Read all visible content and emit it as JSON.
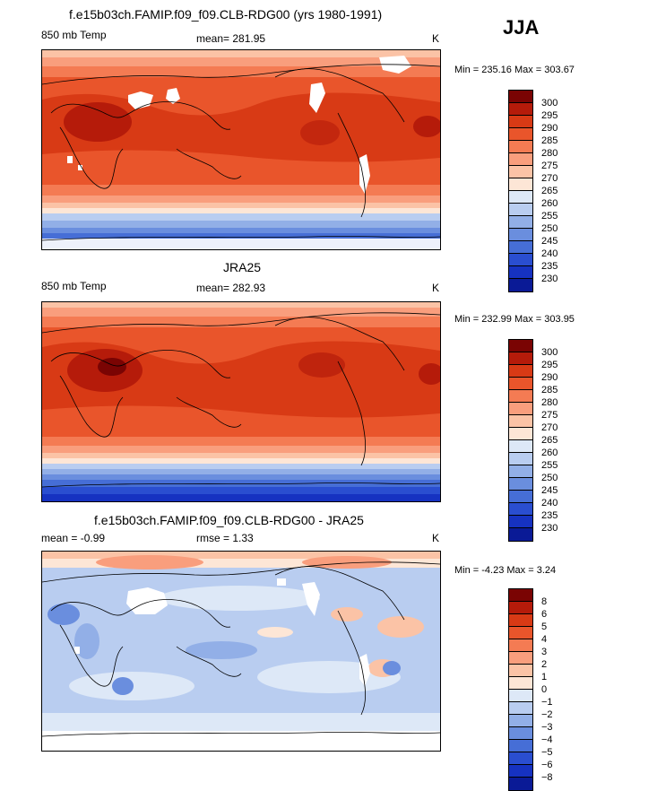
{
  "season": "JJA",
  "panels": [
    {
      "title": "f.e15b03ch.FAMIP.f09_f09.CLB-RDG00 (yrs 1980-1991)",
      "left": "850 mb Temp",
      "center": "mean= 281.95",
      "right": "K",
      "minmax": "Min = 235.16 Max = 303.67",
      "kind": "model"
    },
    {
      "title": "JRA25",
      "left": "850 mb Temp",
      "center": "mean= 282.93",
      "right": "K",
      "minmax": "Min = 232.99 Max = 303.95",
      "kind": "obs"
    },
    {
      "title": "f.e15b03ch.FAMIP.f09_f09.CLB-RDG00 - JRA25",
      "left": "mean =   -0.99",
      "center": "rmse =    1.33",
      "right": "K",
      "minmax": "Min =  -4.23 Max =   3.24",
      "kind": "diff"
    }
  ],
  "colorbars": [
    {
      "labels": [
        "300",
        "295",
        "290",
        "285",
        "280",
        "275",
        "270",
        "265",
        "260",
        "255",
        "250",
        "245",
        "240",
        "235",
        "230"
      ],
      "colors": [
        "#7a0403",
        "#b51b0a",
        "#d83a15",
        "#e9552b",
        "#f47b53",
        "#f99e7d",
        "#fbc3a6",
        "#fde6d6",
        "#dde8f7",
        "#b9cdf0",
        "#92afe7",
        "#6a8ede",
        "#466ed6",
        "#2a4ed0",
        "#1632c1",
        "#0a1a96"
      ]
    },
    {
      "labels": [
        "300",
        "295",
        "290",
        "285",
        "280",
        "275",
        "270",
        "265",
        "260",
        "255",
        "250",
        "245",
        "240",
        "235",
        "230"
      ],
      "colors": [
        "#7a0403",
        "#b51b0a",
        "#d83a15",
        "#e9552b",
        "#f47b53",
        "#f99e7d",
        "#fbc3a6",
        "#fde6d6",
        "#dde8f7",
        "#b9cdf0",
        "#92afe7",
        "#6a8ede",
        "#466ed6",
        "#2a4ed0",
        "#1632c1",
        "#0a1a96"
      ]
    },
    {
      "labels": [
        "8",
        "6",
        "5",
        "4",
        "3",
        "2",
        "1",
        "0",
        "−1",
        "−2",
        "−3",
        "−4",
        "−5",
        "−6",
        "−8"
      ],
      "colors": [
        "#7a0403",
        "#b51b0a",
        "#d83a15",
        "#e9552b",
        "#f47b53",
        "#f99e7d",
        "#fbc3a6",
        "#fde6d6",
        "#dde8f7",
        "#b9cdf0",
        "#92afe7",
        "#6a8ede",
        "#466ed6",
        "#2a4ed0",
        "#1632c1",
        "#0a1a96"
      ]
    }
  ]
}
